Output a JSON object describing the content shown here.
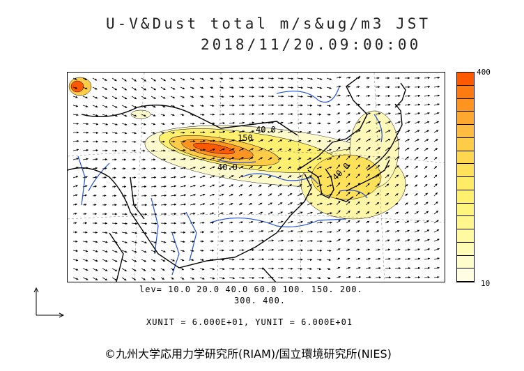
{
  "title_line1": "U-V&Dust total m/s&ug/m3 JST",
  "title_line2": "2018/11/20.09:00:00",
  "colorbar": {
    "max_label": "400",
    "min_label": "10",
    "colors": [
      "#ff5a00",
      "#ff7a10",
      "#ff9420",
      "#ffa830",
      "#ffbc40",
      "#ffcc48",
      "#ffd850",
      "#ffe25a",
      "#ffeb66",
      "#fff070",
      "#fff47e",
      "#fff78e",
      "#fffaa0",
      "#fffcb6",
      "#fffdcc",
      "#fffee2"
    ]
  },
  "contour_labels": [
    "150",
    "40.0",
    "40.0",
    "40.0"
  ],
  "levels_line1": "lev= 10.0 20.0 40.0 60.0 100. 150. 200.",
  "levels_line2": "300. 400.",
  "units_line": "XUNIT = 6.000E+01, YUNIT = 6.000E+01",
  "credit": "©九州大学応用力学研究所(RIAM)/国立環境研究所(NIES)"
}
